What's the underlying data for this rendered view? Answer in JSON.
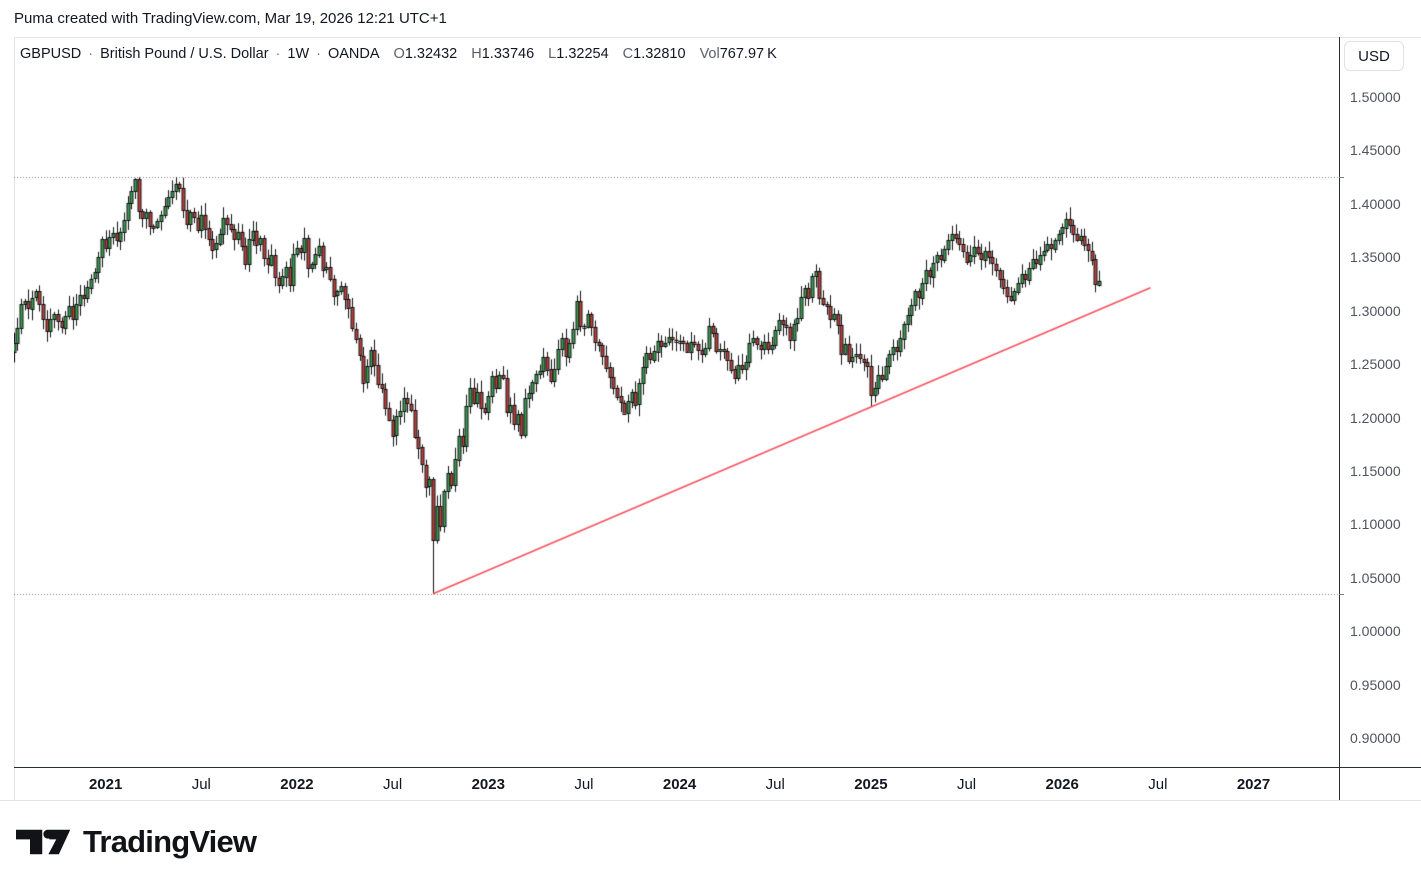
{
  "attribution": "Puma created with TradingView.com, Mar 19, 2026 12:21 UTC+1",
  "legend": {
    "symbol": "GBPUSD",
    "separator": "·",
    "description": "British Pound / U.S. Dollar",
    "interval": "1W",
    "exchange": "OANDA",
    "ohlc": [
      {
        "label": "O",
        "value": "1.32432"
      },
      {
        "label": "H",
        "value": "1.33746"
      },
      {
        "label": "L",
        "value": "1.32254"
      },
      {
        "label": "C",
        "value": "1.32810"
      }
    ],
    "volume": {
      "label": "Vol",
      "value": "767.97",
      "unit": "K"
    }
  },
  "price_axis": {
    "currency_button": "USD",
    "ticks": [
      {
        "label": "1.50000",
        "value": 1.5
      },
      {
        "label": "1.45000",
        "value": 1.45
      },
      {
        "label": "1.40000",
        "value": 1.4
      },
      {
        "label": "1.35000",
        "value": 1.35
      },
      {
        "label": "1.30000",
        "value": 1.3
      },
      {
        "label": "1.25000",
        "value": 1.25
      },
      {
        "label": "1.20000",
        "value": 1.2
      },
      {
        "label": "1.15000",
        "value": 1.15
      },
      {
        "label": "1.10000",
        "value": 1.1
      },
      {
        "label": "1.05000",
        "value": 1.05
      },
      {
        "label": "1.00000",
        "value": 1.0
      },
      {
        "label": "0.95000",
        "value": 0.95
      },
      {
        "label": "0.90000",
        "value": 0.9
      }
    ]
  },
  "time_axis": {
    "ticks": [
      {
        "label": "2021",
        "t": 2021.0,
        "major": true
      },
      {
        "label": "Jul",
        "t": 2021.5,
        "major": false
      },
      {
        "label": "2022",
        "t": 2022.0,
        "major": true
      },
      {
        "label": "Jul",
        "t": 2022.5,
        "major": false
      },
      {
        "label": "2023",
        "t": 2023.0,
        "major": true
      },
      {
        "label": "Jul",
        "t": 2023.5,
        "major": false
      },
      {
        "label": "2024",
        "t": 2024.0,
        "major": true
      },
      {
        "label": "Jul",
        "t": 2024.5,
        "major": false
      },
      {
        "label": "2025",
        "t": 2025.0,
        "major": true
      },
      {
        "label": "Jul",
        "t": 2025.5,
        "major": false
      },
      {
        "label": "2026",
        "t": 2026.0,
        "major": true
      },
      {
        "label": "Jul",
        "t": 2026.5,
        "major": false
      },
      {
        "label": "2027",
        "t": 2027.0,
        "major": true
      }
    ]
  },
  "branding": {
    "logo_text": "TradingView"
  },
  "chart_data": {
    "type": "candlestick",
    "symbol": "GBPUSD",
    "timeframe": "1W",
    "x_range": [
      "2020-07",
      "2027-06"
    ],
    "ylim": [
      0.873,
      1.556
    ],
    "grid": false,
    "first_week": "2020-07-13",
    "weeks_before_2021": 26,
    "first_open": 1.27,
    "weekly_closes": [
      1.262,
      1.27,
      1.284,
      1.306,
      1.309,
      1.302,
      1.312,
      1.318,
      1.306,
      1.292,
      1.281,
      1.292,
      1.297,
      1.29,
      1.284,
      1.295,
      1.304,
      1.292,
      1.306,
      1.315,
      1.312,
      1.322,
      1.33,
      1.336,
      1.35,
      1.367,
      1.359,
      1.369,
      1.373,
      1.366,
      1.374,
      1.385,
      1.401,
      1.412,
      1.423,
      1.393,
      1.386,
      1.392,
      1.379,
      1.378,
      1.384,
      1.39,
      1.398,
      1.406,
      1.412,
      1.419,
      1.415,
      1.394,
      1.381,
      1.392,
      1.387,
      1.376,
      1.39,
      1.377,
      1.367,
      1.357,
      1.363,
      1.372,
      1.387,
      1.381,
      1.376,
      1.367,
      1.374,
      1.361,
      1.344,
      1.367,
      1.375,
      1.362,
      1.368,
      1.349,
      1.343,
      1.352,
      1.331,
      1.324,
      1.332,
      1.341,
      1.324,
      1.353,
      1.359,
      1.355,
      1.368,
      1.34,
      1.344,
      1.353,
      1.361,
      1.339,
      1.341,
      1.33,
      1.314,
      1.318,
      1.323,
      1.311,
      1.303,
      1.283,
      1.274,
      1.258,
      1.233,
      1.248,
      1.263,
      1.249,
      1.231,
      1.227,
      1.209,
      1.198,
      1.183,
      1.201,
      1.206,
      1.218,
      1.213,
      1.207,
      1.182,
      1.172,
      1.156,
      1.135,
      1.142,
      1.085,
      1.117,
      1.098,
      1.131,
      1.148,
      1.137,
      1.161,
      1.183,
      1.174,
      1.211,
      1.228,
      1.214,
      1.224,
      1.209,
      1.205,
      1.22,
      1.239,
      1.228,
      1.24,
      1.237,
      1.205,
      1.212,
      1.194,
      1.203,
      1.183,
      1.218,
      1.223,
      1.233,
      1.241,
      1.244,
      1.257,
      1.245,
      1.234,
      1.245,
      1.264,
      1.274,
      1.257,
      1.27,
      1.283,
      1.309,
      1.286,
      1.285,
      1.297,
      1.285,
      1.271,
      1.268,
      1.258,
      1.247,
      1.238,
      1.228,
      1.22,
      1.214,
      1.204,
      1.215,
      1.224,
      1.212,
      1.232,
      1.247,
      1.26,
      1.254,
      1.262,
      1.272,
      1.267,
      1.27,
      1.275,
      1.273,
      1.272,
      1.272,
      1.27,
      1.262,
      1.271,
      1.269,
      1.263,
      1.259,
      1.265,
      1.286,
      1.279,
      1.262,
      1.264,
      1.262,
      1.254,
      1.245,
      1.237,
      1.249,
      1.245,
      1.252,
      1.27,
      1.274,
      1.268,
      1.264,
      1.271,
      1.264,
      1.268,
      1.282,
      1.291,
      1.287,
      1.285,
      1.273,
      1.288,
      1.293,
      1.313,
      1.321,
      1.312,
      1.332,
      1.337,
      1.312,
      1.306,
      1.304,
      1.292,
      1.297,
      1.287,
      1.26,
      1.269,
      1.253,
      1.257,
      1.259,
      1.255,
      1.252,
      1.248,
      1.221,
      1.228,
      1.24,
      1.236,
      1.248,
      1.259,
      1.266,
      1.262,
      1.274,
      1.288,
      1.296,
      1.305,
      1.318,
      1.312,
      1.326,
      1.338,
      1.332,
      1.345,
      1.352,
      1.348,
      1.358,
      1.366,
      1.372,
      1.368,
      1.362,
      1.355,
      1.346,
      1.352,
      1.36,
      1.354,
      1.348,
      1.356,
      1.35,
      1.344,
      1.338,
      1.33,
      1.322,
      1.314,
      1.31,
      1.318,
      1.326,
      1.334,
      1.329,
      1.34,
      1.348,
      1.344,
      1.352,
      1.356,
      1.362,
      1.358,
      1.366,
      1.372,
      1.378,
      1.386,
      1.38,
      1.372,
      1.366,
      1.37,
      1.362,
      1.356,
      1.348,
      1.3243,
      1.3281
    ],
    "wick_overrides": [
      {
        "i": 34,
        "high": 1.424
      },
      {
        "i": 44,
        "high": 1.422
      },
      {
        "i": 45,
        "high": 1.4248
      },
      {
        "i": 115,
        "low": 1.035
      },
      {
        "i": 139,
        "low": 1.18
      },
      {
        "i": 154,
        "high": 1.3142
      },
      {
        "i": 167,
        "low": 1.2037
      },
      {
        "i": 219,
        "high": 1.3434
      },
      {
        "i": 234,
        "low": 1.21
      },
      {
        "i": 256,
        "high": 1.3795
      },
      {
        "i": 287,
        "high": 1.392
      },
      {
        "i": 296,
        "high": 1.33746,
        "low": 1.32254
      }
    ],
    "annotations": {
      "range_high_line": 1.4248,
      "range_low_line": 1.035,
      "trendline": {
        "start_week": 115,
        "start_price": 1.035,
        "end_week": 310,
        "end_price": 1.3215
      }
    },
    "colors": {
      "up": "#3b9e4d",
      "down": "#bf403a",
      "border": "#101316",
      "wick": "#101316",
      "range_line": "#80848e",
      "trendline": "#f7525f"
    }
  }
}
